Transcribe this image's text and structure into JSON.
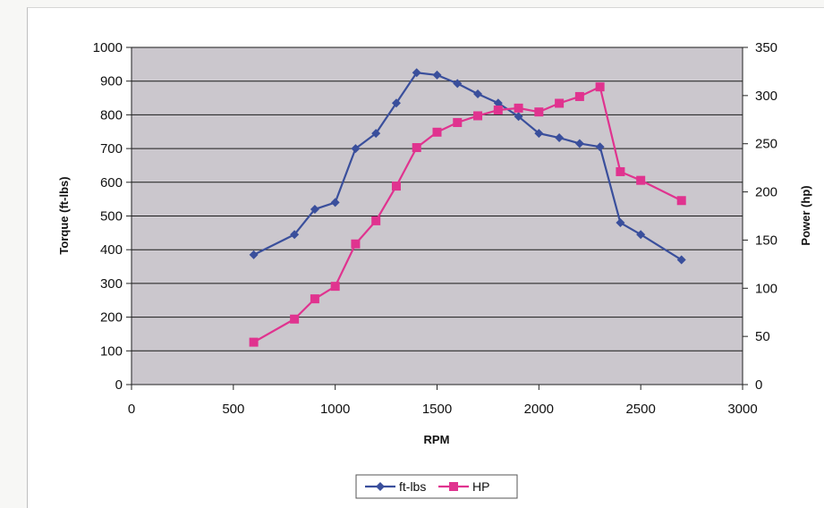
{
  "chart_data": {
    "type": "line",
    "title": "",
    "xlabel": "RPM",
    "ylabel_left": "Torque (ft-lbs)",
    "ylabel_right": "Power (hp)",
    "xlim": [
      0,
      3000
    ],
    "ylim_left": [
      0,
      1000
    ],
    "ylim_right": [
      0,
      350
    ],
    "x_ticks": [
      0,
      500,
      1000,
      1500,
      2000,
      2500,
      3000
    ],
    "y_left_ticks": [
      0,
      100,
      200,
      300,
      400,
      500,
      600,
      700,
      800,
      900,
      1000
    ],
    "y_right_ticks": [
      0,
      50,
      100,
      150,
      200,
      250,
      300,
      350
    ],
    "grid": true,
    "legend_position": "bottom-center",
    "plot_background": "#cbc7cd",
    "series": [
      {
        "name": "ft-lbs",
        "axis": "left",
        "color": "#3a4f9c",
        "marker": "diamond",
        "x": [
          600,
          800,
          900,
          1000,
          1100,
          1200,
          1300,
          1400,
          1500,
          1600,
          1700,
          1800,
          1900,
          2000,
          2100,
          2200,
          2300,
          2400,
          2500,
          2700
        ],
        "y": [
          385,
          445,
          520,
          540,
          700,
          745,
          835,
          925,
          918,
          893,
          862,
          835,
          795,
          745,
          732,
          715,
          705,
          480,
          445,
          370
        ]
      },
      {
        "name": "HP",
        "axis": "right",
        "color": "#e0338f",
        "marker": "square",
        "x": [
          600,
          800,
          900,
          1000,
          1100,
          1200,
          1300,
          1400,
          1500,
          1600,
          1700,
          1800,
          1900,
          2000,
          2100,
          2200,
          2300,
          2400,
          2500,
          2700
        ],
        "y": [
          44,
          68,
          89,
          102,
          146,
          170,
          206,
          246,
          262,
          272,
          279,
          285,
          287,
          283,
          292,
          299,
          309,
          221,
          212,
          191
        ]
      }
    ]
  }
}
